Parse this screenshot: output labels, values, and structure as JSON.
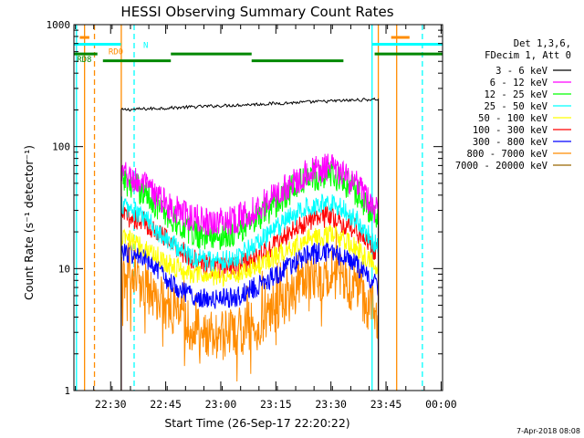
{
  "chart_data": {
    "type": "line",
    "title": "HESSI Observing Summary Count Rates",
    "xlabel": "Start Time (26-Sep-17 22:20:22)",
    "ylabel": "Count Rate (s⁻¹ detector⁻¹)",
    "yscale": "log",
    "ylim": [
      1,
      1000
    ],
    "xlim_minutes_after_start": [
      -0.4,
      100.0
    ],
    "x_ticks": [
      {
        "label": "22:30",
        "minute": 9.6
      },
      {
        "label": "22:45",
        "minute": 24.6
      },
      {
        "label": "23:00",
        "minute": 39.6
      },
      {
        "label": "23:15",
        "minute": 54.6
      },
      {
        "label": "23:30",
        "minute": 69.6
      },
      {
        "label": "23:45",
        "minute": 84.6
      },
      {
        "label": "00:00",
        "minute": 99.6
      }
    ],
    "y_ticks": [
      {
        "label": "1",
        "value": 1
      },
      {
        "label": "10",
        "value": 10
      },
      {
        "label": "100",
        "value": 100
      },
      {
        "label": "1000",
        "value": 1000
      }
    ],
    "legend_header": [
      "Det 1,3,6,",
      "FDecim 1, Att 0"
    ],
    "legend_position": "right",
    "date_stamp": "7-Apr-2018 08:08",
    "data_window_minutes": [
      12.5,
      82.5
    ],
    "series": [
      {
        "name": "3 - 6 keV",
        "color": "#000000",
        "kind": "flat",
        "start": 200,
        "end": 245
      },
      {
        "name": "6 - 12 keV",
        "color": "#ff00ff",
        "kind": "wave",
        "values": [
          60,
          48,
          33,
          26,
          24,
          26,
          33,
          45,
          62,
          68,
          50,
          28
        ]
      },
      {
        "name": "12 - 25 keV",
        "color": "#00ff00",
        "kind": "wave",
        "values": [
          55,
          42,
          27,
          20,
          18,
          20,
          27,
          40,
          56,
          60,
          44,
          25
        ]
      },
      {
        "name": "25 - 50 keV",
        "color": "#00ffff",
        "kind": "wave",
        "values": [
          34,
          26,
          17,
          12.5,
          11.5,
          12.5,
          17,
          24,
          33,
          35,
          26,
          15
        ]
      },
      {
        "name": "50 - 100 keV",
        "color": "#ffff00",
        "kind": "wave",
        "values": [
          18,
          15,
          11,
          9,
          8.5,
          9,
          11,
          14,
          18,
          19,
          15,
          10
        ]
      },
      {
        "name": "100 - 300 keV",
        "color": "#ff0000",
        "kind": "wave",
        "values": [
          28,
          24,
          17,
          12,
          10,
          10.5,
          13,
          18,
          25,
          27,
          21,
          13
        ]
      },
      {
        "name": "300 - 800 keV",
        "color": "#0000ff",
        "kind": "wave",
        "values": [
          14,
          12,
          8,
          6,
          5.5,
          6,
          7.5,
          10,
          13,
          14,
          11,
          7
        ]
      },
      {
        "name": "800 - 7000 keV",
        "color": "#ff8c00",
        "kind": "wave",
        "values": [
          8,
          7,
          4.8,
          3.4,
          2.8,
          3,
          3.8,
          5.5,
          8,
          9,
          7,
          4
        ]
      },
      {
        "name": "7000 - 20000 keV",
        "color": "#996600",
        "kind": "none"
      }
    ],
    "markers": [
      {
        "label": "N",
        "color": "#00ffff",
        "level": 690,
        "segments": [
          [
            -0.4,
            12.4
          ],
          [
            80.8,
            100.0
          ]
        ]
      },
      {
        "label": "RD0",
        "color": "#ff8c00",
        "level": 785,
        "segments": [
          [
            1.2,
            3.8
          ],
          [
            86.0,
            91.0
          ]
        ]
      },
      {
        "label": "RD8",
        "color": "#008800",
        "level": 575,
        "segments": [
          [
            -0.4,
            6.0
          ],
          [
            26.0,
            48.0
          ],
          [
            81.5,
            100.0
          ]
        ]
      },
      {
        "label": "",
        "color": "#008800",
        "level": 505,
        "segments": [
          [
            7.5,
            26.0
          ],
          [
            48.0,
            73.0
          ]
        ]
      }
    ],
    "vlines": [
      {
        "minute": 0.3,
        "color": "#00ffff",
        "style": "solid"
      },
      {
        "minute": 2.5,
        "color": "#ff8c00",
        "style": "solid"
      },
      {
        "minute": 5.2,
        "color": "#ff8c00",
        "style": "dashed"
      },
      {
        "minute": 12.5,
        "color": "#ff8c00",
        "style": "solid"
      },
      {
        "minute": 16.0,
        "color": "#00ffff",
        "style": "dashed"
      },
      {
        "minute": 80.8,
        "color": "#00ffff",
        "style": "solid"
      },
      {
        "minute": 82.5,
        "color": "#ff8c00",
        "style": "solid"
      },
      {
        "minute": 87.5,
        "color": "#ff8c00",
        "style": "solid"
      },
      {
        "minute": 94.5,
        "color": "#00ffff",
        "style": "dashed"
      }
    ]
  }
}
